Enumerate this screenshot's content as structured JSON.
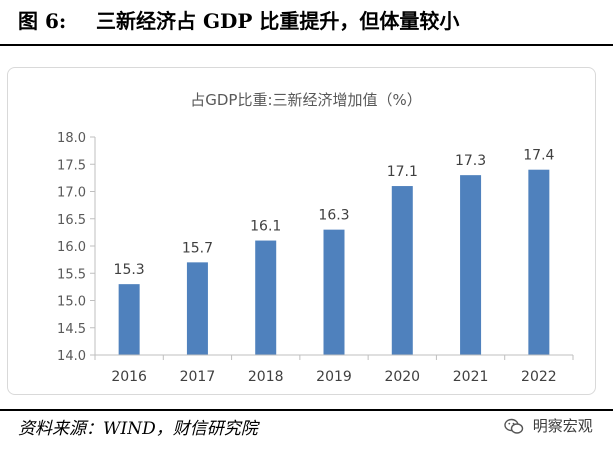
{
  "figure": {
    "label": "图 6:",
    "caption": "三新经济占 GDP 比重提升，但体量较小"
  },
  "source": "资料来源：WIND，财信研究院",
  "watermark": {
    "text": "明察宏观",
    "icon": "wechat-icon"
  },
  "chart_data": {
    "type": "bar",
    "title": "占GDP比重:三新经济增加值（%）",
    "categories": [
      "2016",
      "2017",
      "2018",
      "2019",
      "2020",
      "2021",
      "2022"
    ],
    "values": [
      15.3,
      15.7,
      16.1,
      16.3,
      17.1,
      17.3,
      17.4
    ],
    "data_labels": [
      "15.3",
      "15.7",
      "16.1",
      "16.3",
      "17.1",
      "17.3",
      "17.4"
    ],
    "ylim": [
      14.0,
      18.0
    ],
    "yticks": [
      "14.0",
      "14.5",
      "15.0",
      "15.5",
      "16.0",
      "16.5",
      "17.0",
      "17.5",
      "18.0"
    ],
    "xlabel": "",
    "ylabel": "",
    "grid": false,
    "legend": "none",
    "bar_color": "#4f81bd"
  }
}
